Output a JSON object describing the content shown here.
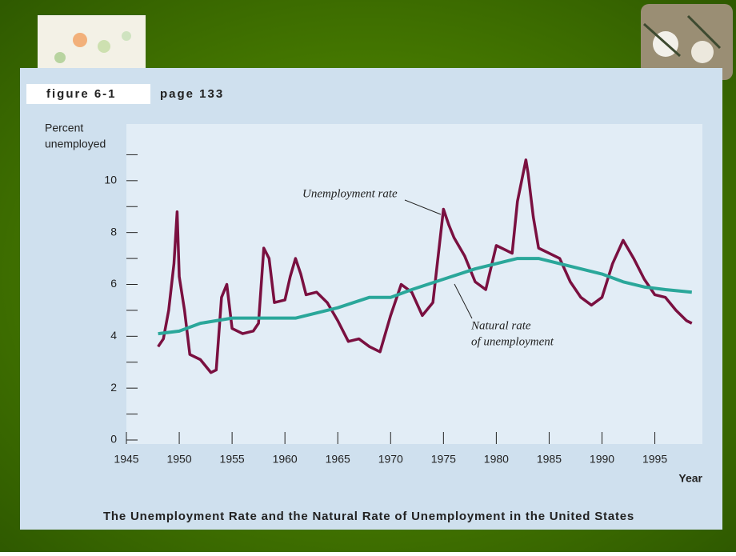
{
  "figure_tag": "figure 6-1",
  "page_tag": "page 133",
  "chart_data": {
    "type": "line",
    "title": "The Unemployment Rate and the Natural Rate of Unemployment in the United States",
    "ylabel_lines": [
      "Percent",
      "unemployed"
    ],
    "xlabel": "Year",
    "xlim": [
      1945,
      1999.5
    ],
    "xticks": [
      1945,
      1950,
      1955,
      1960,
      1965,
      1970,
      1975,
      1980,
      1985,
      1990,
      1995
    ],
    "ylim": [
      0,
      12
    ],
    "yticks": [
      0,
      2,
      4,
      6,
      8,
      10
    ],
    "yminor_ticks": [
      1,
      3,
      5,
      7,
      9,
      11
    ],
    "series": [
      {
        "name": "Unemployment rate",
        "color": "#7a1040",
        "x": [
          1948,
          1948.5,
          1949,
          1949.5,
          1949.8,
          1950,
          1950.5,
          1951,
          1952,
          1953,
          1953.5,
          1954,
          1954.5,
          1955,
          1956,
          1957,
          1957.5,
          1958,
          1958.5,
          1959,
          1960,
          1960.5,
          1961,
          1961.5,
          1962,
          1963,
          1964,
          1965,
          1966,
          1967,
          1968,
          1969,
          1970,
          1971,
          1972,
          1973,
          1974,
          1975,
          1975.5,
          1976,
          1977,
          1978,
          1979,
          1980,
          1981,
          1981.5,
          1982,
          1982.8,
          1983,
          1983.5,
          1984,
          1985,
          1986,
          1987,
          1988,
          1989,
          1990,
          1991,
          1992,
          1993,
          1994,
          1995,
          1996,
          1997,
          1998,
          1998.5
        ],
        "values": [
          3.6,
          3.9,
          5.0,
          6.8,
          8.8,
          6.3,
          5.0,
          3.3,
          3.1,
          2.6,
          2.7,
          5.5,
          6.0,
          4.3,
          4.1,
          4.2,
          4.5,
          7.4,
          7.0,
          5.3,
          5.4,
          6.3,
          7.0,
          6.4,
          5.6,
          5.7,
          5.3,
          4.6,
          3.8,
          3.9,
          3.6,
          3.4,
          4.8,
          6.0,
          5.7,
          4.8,
          5.3,
          8.9,
          8.3,
          7.8,
          7.1,
          6.1,
          5.8,
          7.5,
          7.3,
          7.2,
          9.2,
          10.8,
          10.3,
          8.6,
          7.4,
          7.2,
          7.0,
          6.1,
          5.5,
          5.2,
          5.5,
          6.8,
          7.7,
          7.0,
          6.2,
          5.6,
          5.5,
          5.0,
          4.6,
          4.5
        ]
      },
      {
        "name": "Natural rate of unemployment",
        "name_lines": [
          "Natural rate",
          "of unemployment"
        ],
        "color": "#2aa79a",
        "x": [
          1948,
          1950,
          1952,
          1955,
          1958,
          1961,
          1963,
          1965,
          1968,
          1970,
          1972,
          1975,
          1978,
          1980,
          1982,
          1984,
          1986,
          1988,
          1990,
          1992,
          1994,
          1996,
          1998.5
        ],
        "values": [
          4.1,
          4.2,
          4.5,
          4.7,
          4.7,
          4.7,
          4.9,
          5.1,
          5.5,
          5.5,
          5.8,
          6.2,
          6.6,
          6.8,
          7.0,
          7.0,
          6.8,
          6.6,
          6.4,
          6.1,
          5.9,
          5.8,
          5.7
        ]
      }
    ]
  }
}
